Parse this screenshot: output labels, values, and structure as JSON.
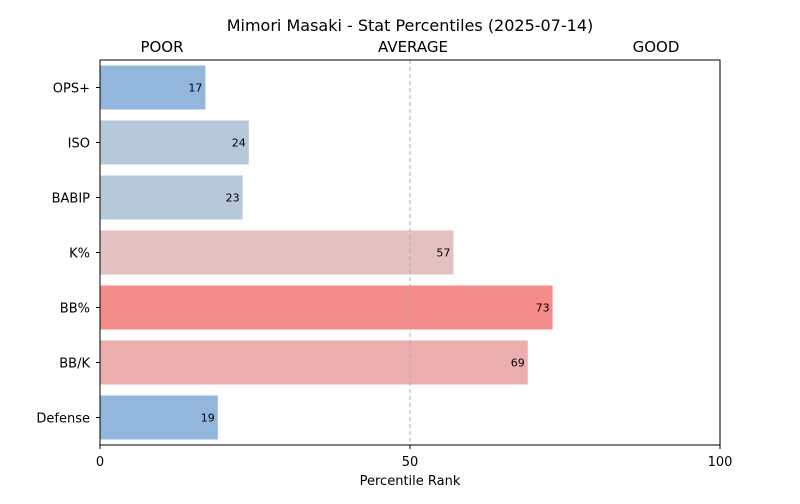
{
  "chart_data": {
    "type": "bar",
    "orientation": "horizontal",
    "title": "Mimori Masaki - Stat Percentiles (2025-07-14)",
    "header_labels": [
      "POOR",
      "AVERAGE",
      "GOOD"
    ],
    "xlabel": "Percentile Rank",
    "ylabel": "",
    "xlim": [
      0,
      100
    ],
    "xticks": [
      0,
      50,
      100
    ],
    "reference_line": 50,
    "grid": false,
    "categories": [
      "OPS+",
      "ISO",
      "BABIP",
      "K%",
      "BB%",
      "BB/K",
      "Defense"
    ],
    "values": [
      17,
      24,
      23,
      57,
      73,
      69,
      19
    ],
    "colors": [
      "#93b6dc",
      "#b7c8db",
      "#b7c8db",
      "#e3c1c1",
      "#f48c8b",
      "#ecaeae",
      "#93b6dc"
    ]
  }
}
